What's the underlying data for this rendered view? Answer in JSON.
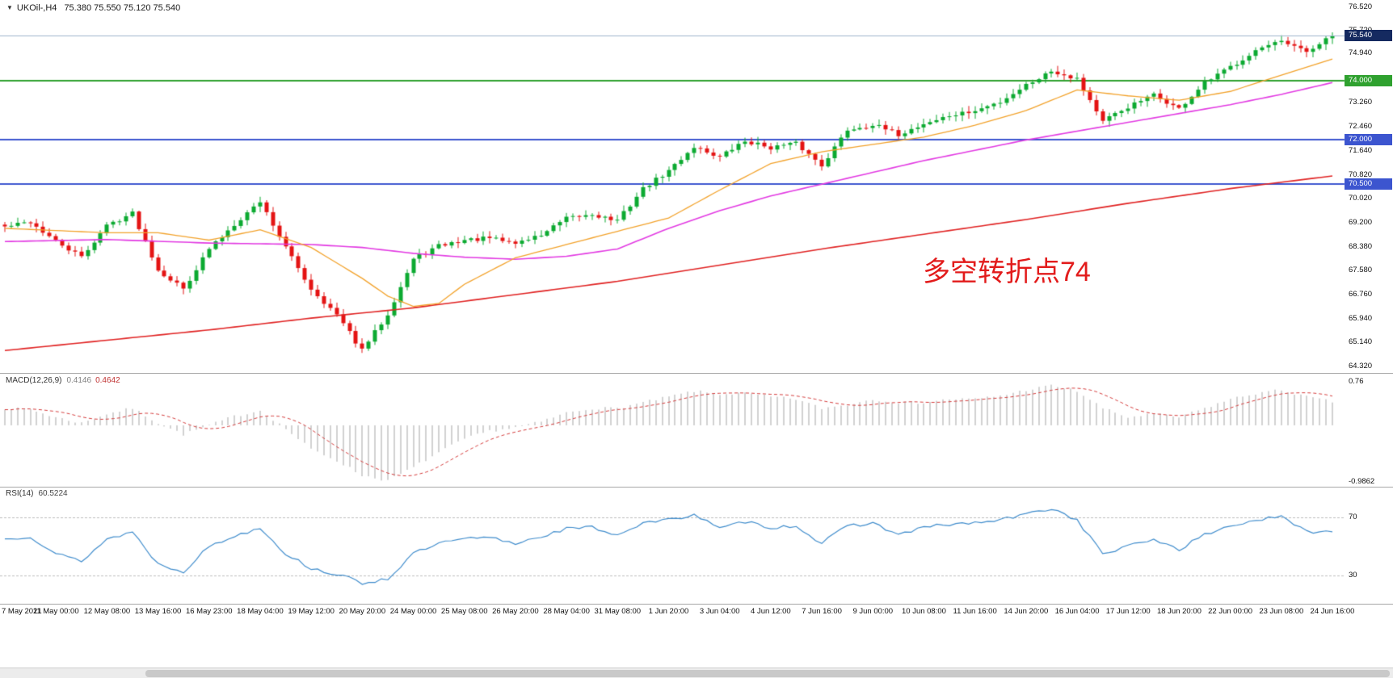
{
  "header": {
    "expand_icon": "▼"
  },
  "colors": {
    "candle_up": "#0caa31",
    "candle_down": "#e41414",
    "ma_fast": "#f2a22b",
    "ma_mid": "#e23ae2",
    "ma_slow": "#e02222",
    "level_green": "#2fa12f",
    "level_blue": "#3c55cf",
    "bid_line": "#9fb3cd",
    "bid_badge": "#152a60",
    "macd_hist": "#b4b4b4",
    "macd_signal": "#d43c3c",
    "rsi_line": "#3f8ccc",
    "rsi_level": "#bdbdbd",
    "annotation": "#e21b1b",
    "axis_text": "#111111",
    "separator": "#a6a6a6"
  },
  "chart_data": [
    {
      "type": "candlestick",
      "title": "UKOil-,H4",
      "ohlc_text": "75.380 75.550 75.120 75.540",
      "open": 75.38,
      "high": 75.55,
      "low": 75.12,
      "close": 75.54,
      "ylim": [
        64.2,
        76.7
      ],
      "y_ticks": [
        "76.520",
        "75.720",
        "74.940",
        "73.260",
        "72.460",
        "71.640",
        "70.820",
        "70.020",
        "69.200",
        "68.380",
        "67.580",
        "66.760",
        "65.940",
        "65.140",
        "64.320"
      ],
      "x_labels": [
        "7 May 2021",
        "11 May 00:00",
        "12 May 08:00",
        "13 May 16:00",
        "16 May 23:00",
        "18 May 04:00",
        "19 May 12:00",
        "20 May 20:00",
        "24 May 00:00",
        "25 May 08:00",
        "26 May 20:00",
        "28 May 04:00",
        "31 May 08:00",
        "1 Jun 20:00",
        "3 Jun 04:00",
        "4 Jun 12:00",
        "7 Jun 16:00",
        "9 Jun 00:00",
        "10 Jun 08:00",
        "11 Jun 16:00",
        "14 Jun 20:00",
        "16 Jun 04:00",
        "17 Jun 12:00",
        "18 Jun 20:00",
        "22 Jun 00:00",
        "23 Jun 08:00",
        "24 Jun 16:00"
      ],
      "bars_per_label": 8,
      "bar_count": 209,
      "close_path": [
        [
          0,
          69.05
        ],
        [
          4,
          69.22
        ],
        [
          8,
          68.55
        ],
        [
          12,
          68.02
        ],
        [
          16,
          69.1
        ],
        [
          20,
          69.52
        ],
        [
          24,
          67.6
        ],
        [
          28,
          66.95
        ],
        [
          32,
          68.3
        ],
        [
          36,
          69.15
        ],
        [
          40,
          69.92
        ],
        [
          44,
          68.35
        ],
        [
          48,
          66.95
        ],
        [
          52,
          66.05
        ],
        [
          56,
          64.85
        ],
        [
          60,
          66.1
        ],
        [
          64,
          67.95
        ],
        [
          68,
          68.4
        ],
        [
          72,
          68.6
        ],
        [
          76,
          68.66
        ],
        [
          80,
          68.5
        ],
        [
          84,
          68.78
        ],
        [
          88,
          69.32
        ],
        [
          92,
          69.48
        ],
        [
          96,
          69.25
        ],
        [
          100,
          70.35
        ],
        [
          104,
          70.95
        ],
        [
          108,
          71.78
        ],
        [
          112,
          71.42
        ],
        [
          116,
          71.96
        ],
        [
          120,
          71.75
        ],
        [
          124,
          71.88
        ],
        [
          128,
          71.15
        ],
        [
          132,
          72.35
        ],
        [
          136,
          72.52
        ],
        [
          140,
          72.18
        ],
        [
          144,
          72.55
        ],
        [
          148,
          72.82
        ],
        [
          152,
          72.98
        ],
        [
          156,
          73.3
        ],
        [
          160,
          73.88
        ],
        [
          164,
          74.35
        ],
        [
          168,
          74.1
        ],
        [
          172,
          72.62
        ],
        [
          176,
          73.12
        ],
        [
          180,
          73.52
        ],
        [
          184,
          73.05
        ],
        [
          188,
          73.92
        ],
        [
          192,
          74.48
        ],
        [
          196,
          75.05
        ],
        [
          200,
          75.32
        ],
        [
          204,
          74.98
        ],
        [
          208,
          75.54
        ]
      ],
      "ma_fast_path": [
        [
          0,
          69.0
        ],
        [
          16,
          68.85
        ],
        [
          24,
          68.85
        ],
        [
          32,
          68.6
        ],
        [
          40,
          68.95
        ],
        [
          48,
          68.35
        ],
        [
          56,
          67.3
        ],
        [
          60,
          66.7
        ],
        [
          64,
          66.35
        ],
        [
          68,
          66.45
        ],
        [
          72,
          67.1
        ],
        [
          80,
          68.0
        ],
        [
          88,
          68.45
        ],
        [
          96,
          68.9
        ],
        [
          104,
          69.35
        ],
        [
          112,
          70.3
        ],
        [
          120,
          71.2
        ],
        [
          128,
          71.6
        ],
        [
          136,
          71.85
        ],
        [
          144,
          72.1
        ],
        [
          152,
          72.5
        ],
        [
          160,
          73.0
        ],
        [
          168,
          73.7
        ],
        [
          176,
          73.5
        ],
        [
          184,
          73.35
        ],
        [
          192,
          73.65
        ],
        [
          200,
          74.2
        ],
        [
          208,
          74.75
        ]
      ],
      "ma_mid_path": [
        [
          0,
          68.55
        ],
        [
          16,
          68.62
        ],
        [
          32,
          68.5
        ],
        [
          48,
          68.45
        ],
        [
          56,
          68.35
        ],
        [
          64,
          68.15
        ],
        [
          72,
          68.02
        ],
        [
          80,
          67.95
        ],
        [
          88,
          68.05
        ],
        [
          96,
          68.3
        ],
        [
          104,
          69.0
        ],
        [
          112,
          69.6
        ],
        [
          120,
          70.1
        ],
        [
          128,
          70.5
        ],
        [
          136,
          70.9
        ],
        [
          144,
          71.3
        ],
        [
          152,
          71.65
        ],
        [
          160,
          72.0
        ],
        [
          168,
          72.3
        ],
        [
          176,
          72.6
        ],
        [
          184,
          72.9
        ],
        [
          192,
          73.2
        ],
        [
          200,
          73.55
        ],
        [
          208,
          73.95
        ]
      ],
      "ma_slow_path": [
        [
          0,
          64.85
        ],
        [
          16,
          65.2
        ],
        [
          32,
          65.55
        ],
        [
          48,
          65.95
        ],
        [
          64,
          66.3
        ],
        [
          80,
          66.75
        ],
        [
          96,
          67.2
        ],
        [
          112,
          67.75
        ],
        [
          128,
          68.3
        ],
        [
          144,
          68.8
        ],
        [
          160,
          69.3
        ],
        [
          176,
          69.85
        ],
        [
          192,
          70.35
        ],
        [
          208,
          70.78
        ]
      ],
      "levels": [
        {
          "price": 74.0,
          "label": "74.000",
          "style": "green"
        },
        {
          "price": 72.0,
          "label": "72.000",
          "style": "blue"
        },
        {
          "price": 70.5,
          "label": "70.500",
          "style": "blue"
        }
      ],
      "bid": {
        "price": 75.54,
        "label": "75.540"
      },
      "annotation": {
        "text": "多空转折点74"
      }
    },
    {
      "type": "bar",
      "label": "MACD(12,26,9)",
      "value_main": "0.4146",
      "value_signal": "0.4642",
      "ylim": [
        -1.05,
        0.85
      ],
      "y_ticks": [
        "0.76",
        "-0.9862"
      ],
      "signal_period": 9,
      "macd_path": [
        [
          0,
          0.3
        ],
        [
          4,
          0.28
        ],
        [
          8,
          0.14
        ],
        [
          12,
          0.04
        ],
        [
          16,
          0.2
        ],
        [
          20,
          0.3
        ],
        [
          24,
          0.04
        ],
        [
          28,
          -0.16
        ],
        [
          32,
          0.0
        ],
        [
          36,
          0.16
        ],
        [
          40,
          0.26
        ],
        [
          44,
          -0.06
        ],
        [
          48,
          -0.42
        ],
        [
          52,
          -0.62
        ],
        [
          56,
          -0.88
        ],
        [
          60,
          -0.97
        ],
        [
          64,
          -0.74
        ],
        [
          68,
          -0.48
        ],
        [
          72,
          -0.24
        ],
        [
          76,
          -0.1
        ],
        [
          80,
          -0.04
        ],
        [
          84,
          0.06
        ],
        [
          88,
          0.22
        ],
        [
          92,
          0.3
        ],
        [
          96,
          0.3
        ],
        [
          100,
          0.4
        ],
        [
          104,
          0.5
        ],
        [
          108,
          0.6
        ],
        [
          112,
          0.55
        ],
        [
          116,
          0.56
        ],
        [
          120,
          0.5
        ],
        [
          124,
          0.46
        ],
        [
          128,
          0.3
        ],
        [
          132,
          0.36
        ],
        [
          136,
          0.46
        ],
        [
          140,
          0.4
        ],
        [
          144,
          0.4
        ],
        [
          148,
          0.46
        ],
        [
          152,
          0.46
        ],
        [
          156,
          0.52
        ],
        [
          160,
          0.62
        ],
        [
          164,
          0.7
        ],
        [
          168,
          0.6
        ],
        [
          172,
          0.3
        ],
        [
          176,
          0.14
        ],
        [
          180,
          0.2
        ],
        [
          184,
          0.14
        ],
        [
          188,
          0.3
        ],
        [
          192,
          0.46
        ],
        [
          196,
          0.56
        ],
        [
          200,
          0.62
        ],
        [
          204,
          0.5
        ],
        [
          208,
          0.4146
        ]
      ]
    },
    {
      "type": "line",
      "label": "RSI(14)",
      "value": "60.5224",
      "ylim": [
        12,
        88
      ],
      "levels": [
        "70",
        "30"
      ],
      "rsi_path": [
        [
          0,
          55
        ],
        [
          4,
          57
        ],
        [
          8,
          45
        ],
        [
          12,
          40
        ],
        [
          16,
          55
        ],
        [
          20,
          60
        ],
        [
          24,
          38
        ],
        [
          28,
          33
        ],
        [
          32,
          50
        ],
        [
          36,
          57
        ],
        [
          40,
          63
        ],
        [
          44,
          45
        ],
        [
          48,
          35
        ],
        [
          52,
          31
        ],
        [
          56,
          25
        ],
        [
          60,
          28
        ],
        [
          64,
          45
        ],
        [
          68,
          52
        ],
        [
          72,
          55
        ],
        [
          76,
          56
        ],
        [
          80,
          52
        ],
        [
          84,
          57
        ],
        [
          88,
          62
        ],
        [
          92,
          63
        ],
        [
          96,
          58
        ],
        [
          100,
          66
        ],
        [
          104,
          68
        ],
        [
          108,
          72
        ],
        [
          112,
          62
        ],
        [
          116,
          67
        ],
        [
          120,
          63
        ],
        [
          124,
          64
        ],
        [
          128,
          52
        ],
        [
          132,
          64
        ],
        [
          136,
          66
        ],
        [
          140,
          58
        ],
        [
          144,
          63
        ],
        [
          148,
          65
        ],
        [
          152,
          66
        ],
        [
          156,
          68
        ],
        [
          160,
          72
        ],
        [
          164,
          76
        ],
        [
          168,
          68
        ],
        [
          172,
          45
        ],
        [
          176,
          50
        ],
        [
          180,
          55
        ],
        [
          184,
          48
        ],
        [
          188,
          58
        ],
        [
          192,
          64
        ],
        [
          196,
          68
        ],
        [
          200,
          70
        ],
        [
          204,
          60
        ],
        [
          208,
          60.52
        ]
      ]
    }
  ]
}
